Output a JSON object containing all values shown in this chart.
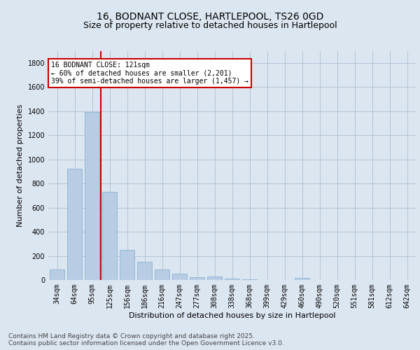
{
  "title_line1": "16, BODNANT CLOSE, HARTLEPOOL, TS26 0GD",
  "title_line2": "Size of property relative to detached houses in Hartlepool",
  "xlabel": "Distribution of detached houses by size in Hartlepool",
  "ylabel": "Number of detached properties",
  "categories": [
    "34sqm",
    "64sqm",
    "95sqm",
    "125sqm",
    "156sqm",
    "186sqm",
    "216sqm",
    "247sqm",
    "277sqm",
    "308sqm",
    "338sqm",
    "368sqm",
    "399sqm",
    "429sqm",
    "460sqm",
    "490sqm",
    "520sqm",
    "551sqm",
    "581sqm",
    "612sqm",
    "642sqm"
  ],
  "values": [
    85,
    920,
    1395,
    730,
    248,
    150,
    88,
    52,
    22,
    30,
    12,
    5,
    0,
    0,
    18,
    0,
    0,
    0,
    0,
    0,
    0
  ],
  "bar_color": "#b8cce4",
  "bar_edge_color": "#7aadcf",
  "grid_color": "#b0bdd0",
  "background_color": "#dce6f1",
  "plot_bg_color": "#dce6f1",
  "vline_color": "#cc0000",
  "vline_pos": 2.5,
  "annotation_text_line1": "16 BODNANT CLOSE: 121sqm",
  "annotation_text_line2": "← 60% of detached houses are smaller (2,201)",
  "annotation_text_line3": "39% of semi-detached houses are larger (1,457) →",
  "annotation_box_color": "#cc0000",
  "ylim": [
    0,
    1900
  ],
  "yticks": [
    0,
    200,
    400,
    600,
    800,
    1000,
    1200,
    1400,
    1600,
    1800
  ],
  "footer_text": "Contains HM Land Registry data © Crown copyright and database right 2025.\nContains public sector information licensed under the Open Government Licence v3.0.",
  "title_fontsize": 10,
  "subtitle_fontsize": 9,
  "axis_label_fontsize": 8,
  "tick_fontsize": 7,
  "footer_fontsize": 6.5,
  "annotation_fontsize": 7
}
